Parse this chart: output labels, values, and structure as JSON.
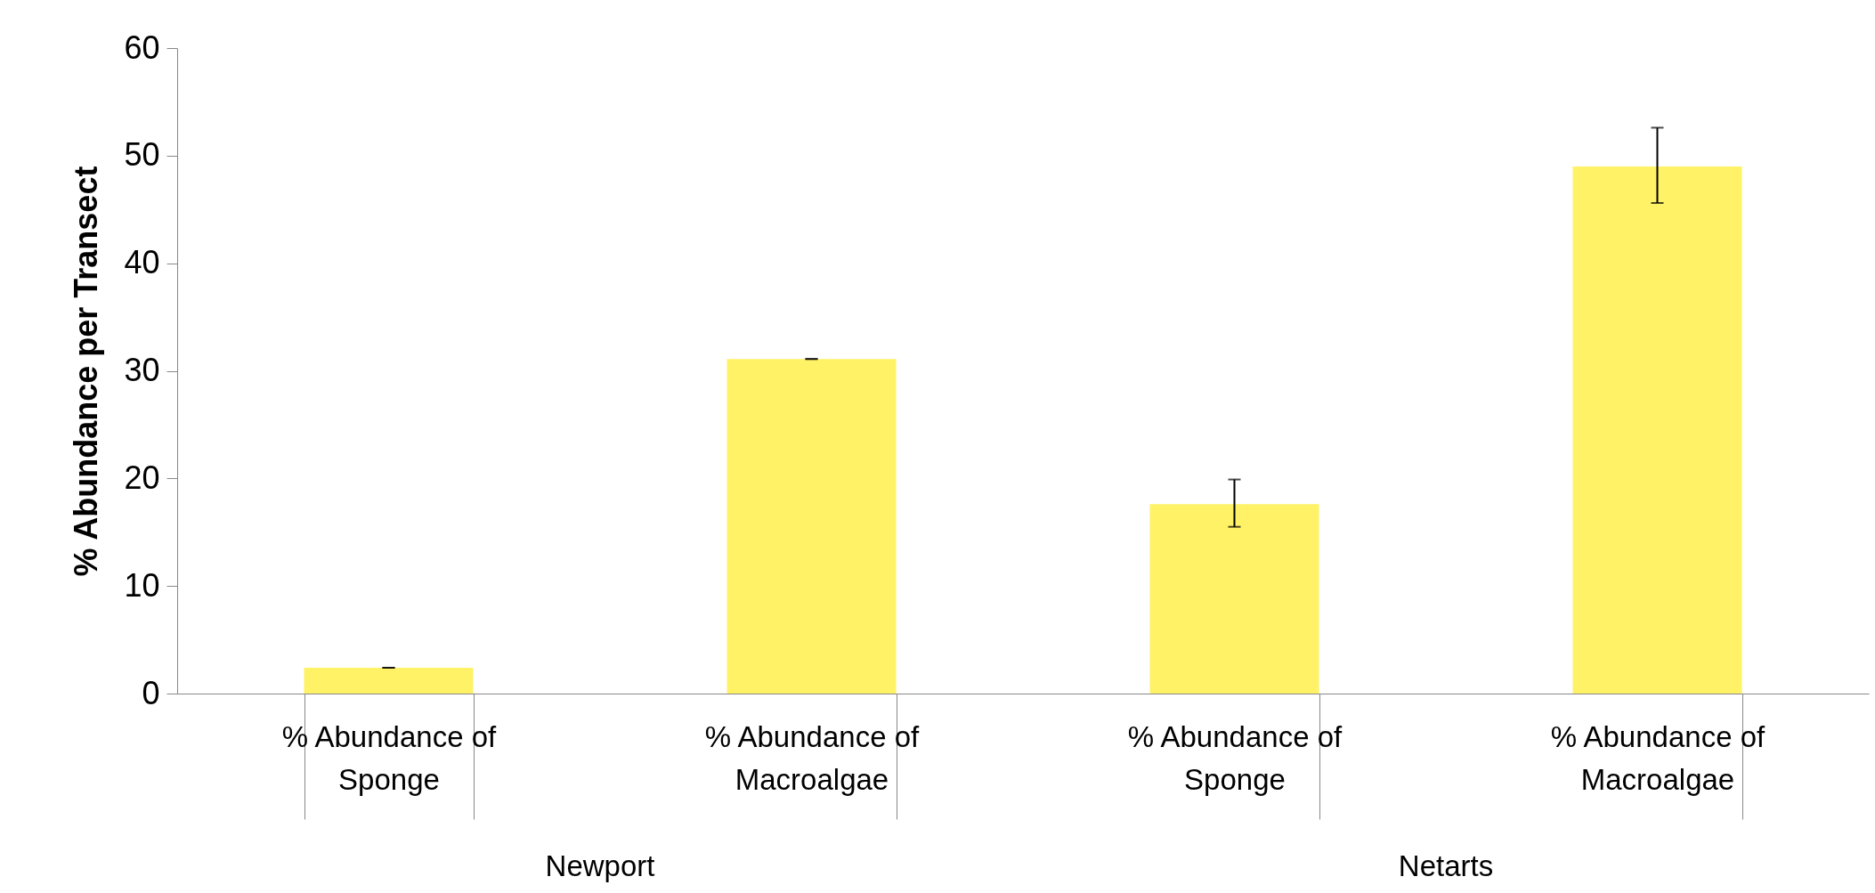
{
  "chart_data": {
    "type": "bar",
    "ylabel": "% Abundance per Transect",
    "categories": [
      "% Abundance of Sponge",
      "% Abundance of Macroalgae",
      "% Abundance of Sponge",
      "% Abundance of Macroalgae"
    ],
    "values": [
      2.4,
      31.1,
      17.6,
      49
    ],
    "errors": [
      0,
      0,
      [
        15.5,
        19.9
      ],
      [
        45.6,
        52.6
      ]
    ],
    "color": "#fff266",
    "annotations": [
      "Newport",
      "Netarts"
    ],
    "ylim": [
      0,
      60
    ],
    "yticks": [
      0,
      10,
      20,
      30,
      40,
      50,
      60
    ],
    "grid": false
  }
}
